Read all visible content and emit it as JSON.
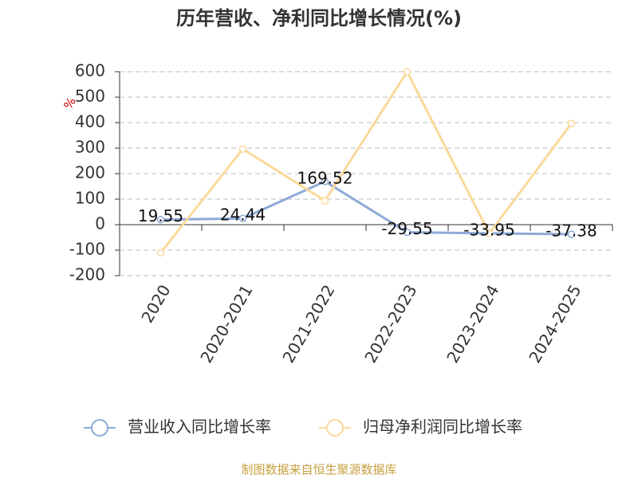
{
  "chart_data": {
    "type": "line",
    "title": "历年营收、净利同比增长情况(%)",
    "y_label": "%",
    "categories": [
      "2020",
      "2020-2021",
      "2021-2022",
      "2022-2023",
      "2023-2024",
      "2024-2025"
    ],
    "series": [
      {
        "name": "营业收入同比增长率",
        "color": "#8eaad8",
        "values": [
          19.55,
          24.44,
          169.52,
          -29.55,
          -33.95,
          -37.38
        ]
      },
      {
        "name": "归母净利润同比增长率",
        "color": "#fbd99a",
        "values": [
          -110,
          297,
          94,
          600,
          -35,
          397
        ]
      }
    ],
    "ylim": [
      -200,
      600
    ],
    "yticks": [
      -200,
      -100,
      0,
      100,
      200,
      300,
      400,
      500,
      600
    ],
    "grid": true,
    "legend": "bottom",
    "source": "制图数据来自恒生聚源数据库"
  }
}
